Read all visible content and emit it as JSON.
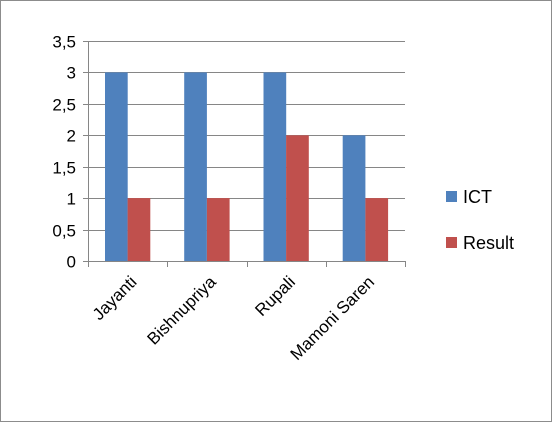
{
  "chart_data": {
    "type": "bar",
    "title": "",
    "xlabel": "",
    "ylabel": "",
    "categories": [
      "Jayanti",
      "Bishnupriya",
      "Rupali",
      "Mamoni Saren"
    ],
    "series": [
      {
        "name": "ICT",
        "values": [
          3,
          3,
          3,
          2
        ],
        "color": "#4F81BD"
      },
      {
        "name": "Result",
        "values": [
          1,
          1,
          2,
          1
        ],
        "color": "#C0504D"
      }
    ],
    "ylim": [
      0,
      3.5
    ],
    "yticks": [
      "0",
      "0,5",
      "1",
      "1,5",
      "2",
      "2,5",
      "3",
      "3,5"
    ],
    "grid": true,
    "legend_position": "right"
  }
}
